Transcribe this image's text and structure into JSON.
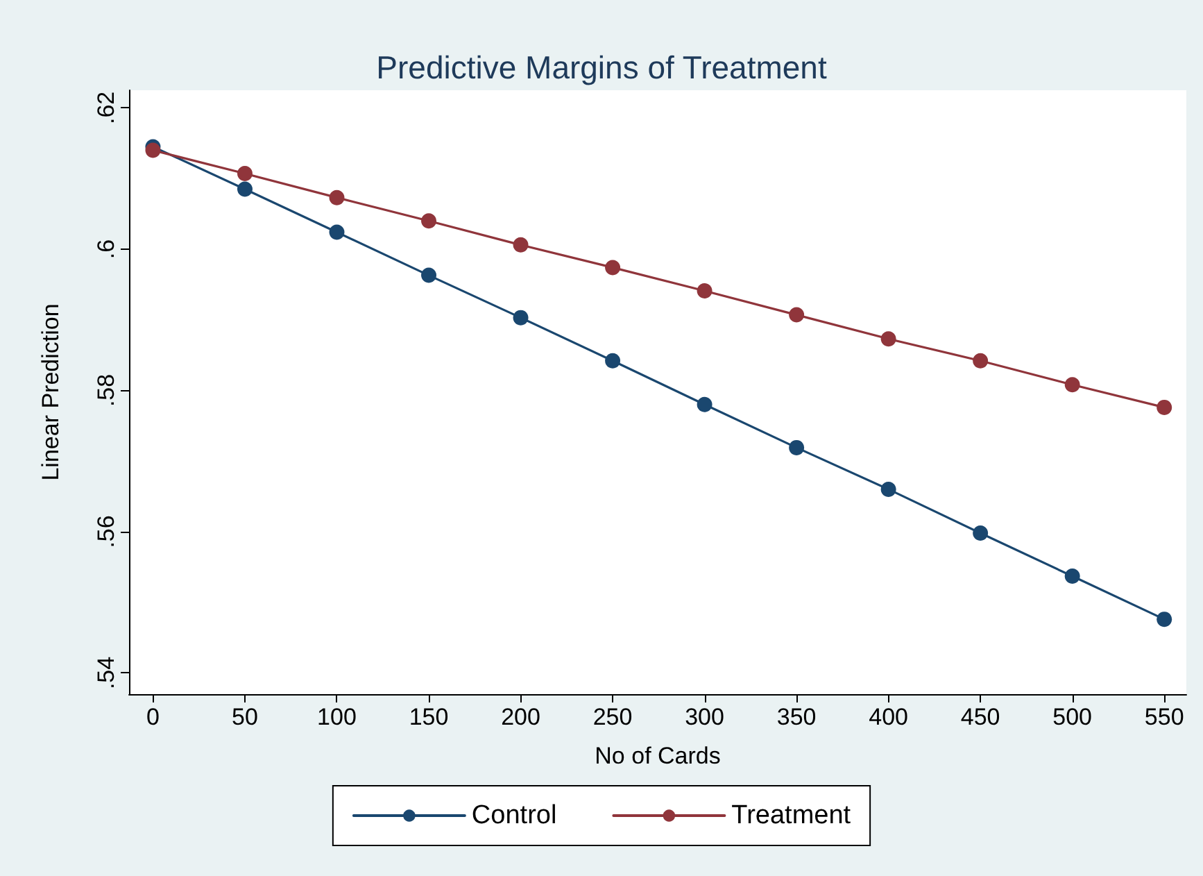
{
  "chart_data": {
    "type": "line",
    "title": "Predictive Margins of Treatment",
    "xlabel": "No of Cards",
    "ylabel": "Linear Prediction",
    "x": [
      0,
      50,
      100,
      150,
      200,
      250,
      300,
      350,
      400,
      450,
      500,
      550
    ],
    "series": [
      {
        "name": "Control",
        "color": "#1a476f",
        "values": [
          0.6145,
          0.6085,
          0.6024,
          0.5963,
          0.5903,
          0.5842,
          0.578,
          0.5719,
          0.566,
          0.5598,
          0.5537,
          0.5476
        ]
      },
      {
        "name": "Treatment",
        "color": "#90353b",
        "values": [
          0.614,
          0.6107,
          0.6073,
          0.604,
          0.6006,
          0.5974,
          0.5941,
          0.5907,
          0.5873,
          0.5842,
          0.5808,
          0.5776
        ]
      }
    ],
    "xlim": [
      -13,
      562
    ],
    "xticks": [
      0,
      50,
      100,
      150,
      200,
      250,
      300,
      350,
      400,
      450,
      500,
      550
    ],
    "ylim": [
      0.537,
      0.6225
    ],
    "yticks": [
      {
        "value": 0.54,
        "label": ".54"
      },
      {
        "value": 0.56,
        "label": ".56"
      },
      {
        "value": 0.58,
        "label": ".58"
      },
      {
        "value": 0.6,
        "label": ".6"
      },
      {
        "value": 0.62,
        "label": ".62"
      }
    ],
    "marker": "circle",
    "line_style": "solid",
    "grid": false,
    "legend": "bottom"
  }
}
